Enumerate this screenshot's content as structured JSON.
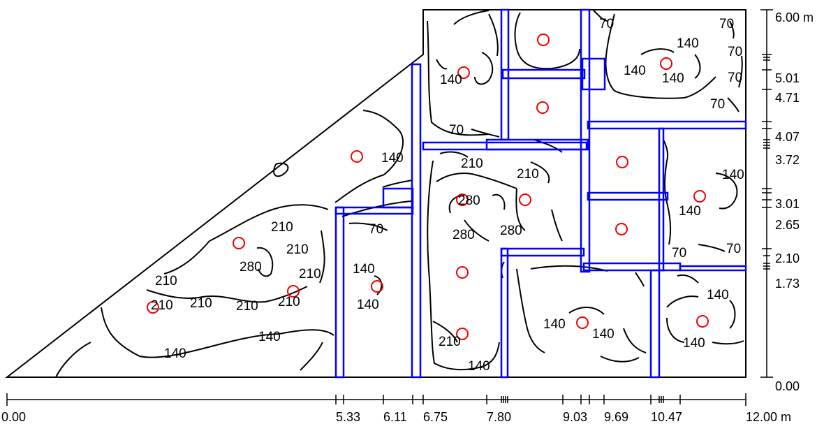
{
  "plan": {
    "outline_color": "#000000",
    "wall_color": "#0000ff",
    "luminaire_color": "#ee0000",
    "contour_color": "#000000"
  },
  "x_axis": {
    "ticks": [
      "0.00",
      "5.33",
      "6.11",
      "6.75",
      "7.80",
      "9.03",
      "9.69",
      "10.47",
      "12.00 m"
    ]
  },
  "y_axis": {
    "ticks": [
      "0.00",
      "1.73",
      "2.10",
      "2.65",
      "3.01",
      "3.72",
      "4.07",
      "4.71",
      "5.01",
      "6.00 m"
    ]
  },
  "contour_labels": [
    "70",
    "70",
    "70",
    "70",
    "70",
    "70",
    "70",
    "70",
    "70",
    "140",
    "140",
    "140",
    "140",
    "140",
    "140",
    "140",
    "140",
    "140",
    "140",
    "140",
    "140",
    "140",
    "140",
    "140",
    "140",
    "210",
    "210",
    "210",
    "210",
    "210",
    "210",
    "210",
    "210",
    "210",
    "210",
    "210",
    "280",
    "280",
    "280",
    "280"
  ]
}
